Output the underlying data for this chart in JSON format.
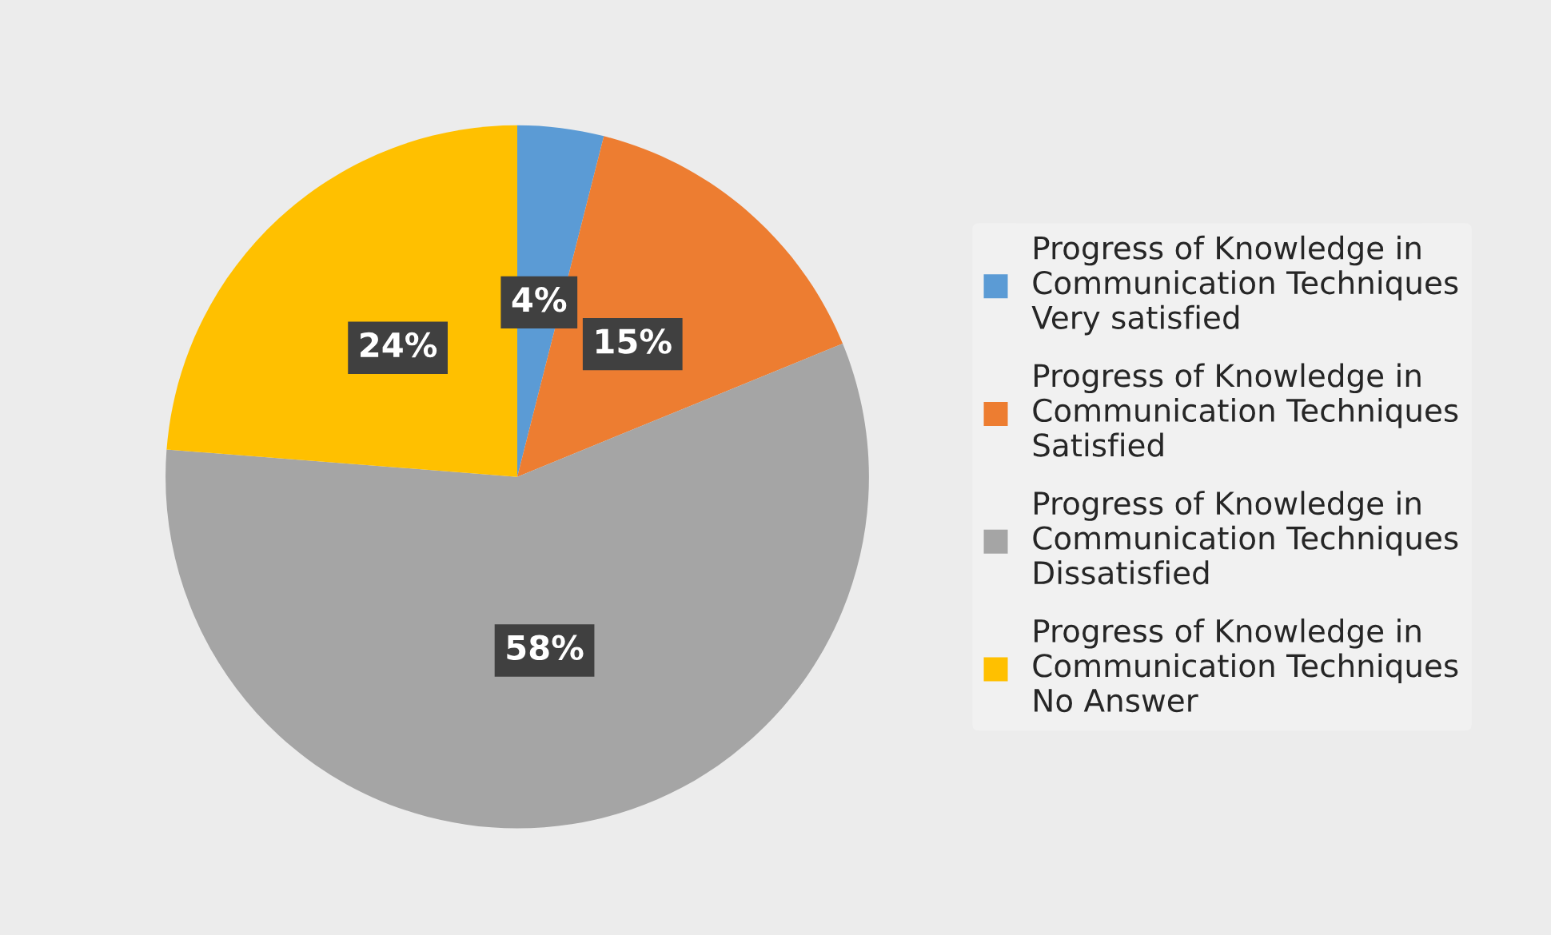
{
  "chart_data": {
    "type": "pie",
    "categories": [
      "Progress of Knowledge in\nCommunication Techniques\nVery satisfied",
      "Progress of Knowledge in\nCommunication Techniques\nSatisfied",
      "Progress of Knowledge in\nCommunication Techniques\nDissatisfied",
      "Progress of Knowledge in\nCommunication Techniques\nNo Answer"
    ],
    "values": [
      4,
      15,
      58,
      24
    ],
    "colors": [
      "#5b9bd5",
      "#ed7d31",
      "#a5a5a5",
      "#ffc000"
    ],
    "value_labels": [
      "4%",
      "15%",
      "58%",
      "24%"
    ],
    "legend": "right"
  }
}
